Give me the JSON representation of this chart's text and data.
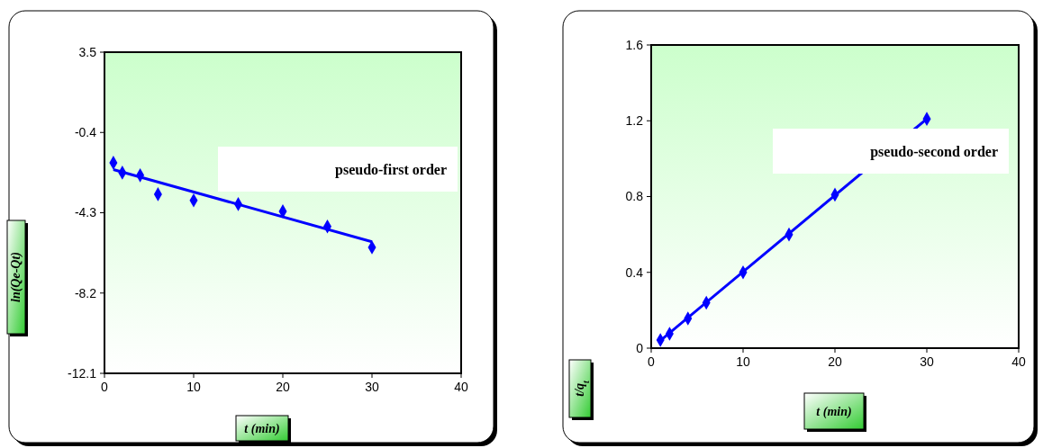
{
  "chart_data": [
    {
      "type": "scatter",
      "xlabel": "t (min)",
      "ylabel": "ln(Qe-Qt)",
      "xlim": [
        0,
        40
      ],
      "xticks": [
        0,
        10,
        20,
        30,
        40
      ],
      "ylim": [
        -12.1,
        3.5
      ],
      "yticks": [
        -12.1,
        -8.2,
        -4.3,
        -0.4,
        3.5
      ],
      "marker": "diamond",
      "grid": false,
      "annotations": [
        {
          "text": "pseudo-first order"
        }
      ],
      "series": [
        {
          "color": "#0000ff",
          "x": [
            1,
            2,
            4,
            6,
            10,
            15,
            20,
            25,
            30
          ],
          "values": [
            -1.87,
            -2.35,
            -2.48,
            -3.4,
            -3.7,
            -3.88,
            -4.23,
            -4.97,
            -5.98
          ]
        },
        {
          "type": "line",
          "marker": "none",
          "color": "#0000ff",
          "x": [
            1,
            30
          ],
          "values": [
            -2.2,
            -5.71
          ]
        }
      ]
    },
    {
      "type": "scatter",
      "xlabel": "t (min)",
      "ylabel": "t/q$_{t}$",
      "xlim": [
        0,
        40
      ],
      "xticks": [
        0,
        10,
        20,
        30,
        40
      ],
      "ylim": [
        0,
        1.6
      ],
      "yticks": [
        0,
        0.4,
        0.8,
        1.2,
        1.6
      ],
      "marker": "diamond",
      "grid": false,
      "annotations": [
        {
          "text": "pseudo-second order"
        }
      ],
      "series": [
        {
          "color": "#0000ff",
          "x": [
            1,
            2,
            4,
            6,
            10,
            15,
            20,
            30
          ],
          "values": [
            0.043,
            0.076,
            0.157,
            0.24,
            0.4,
            0.6,
            0.81,
            1.21
          ]
        },
        {
          "type": "line",
          "marker": "none",
          "color": "#0000ff",
          "x": [
            1,
            30
          ],
          "values": [
            0.04,
            1.21
          ]
        }
      ]
    }
  ]
}
